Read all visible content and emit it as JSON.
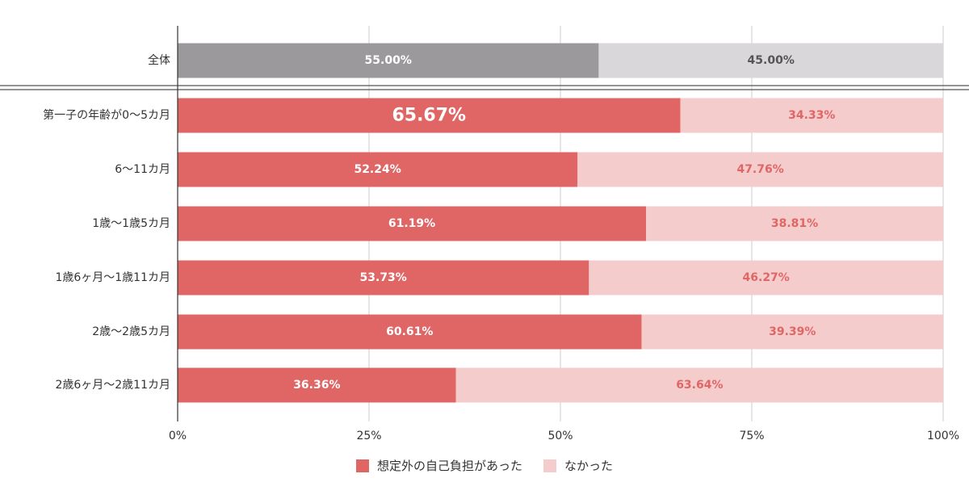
{
  "chart_data": {
    "type": "bar",
    "orientation": "horizontal",
    "stacked": true,
    "categories": [
      "全体",
      "第一子の年齢が0〜5カ月",
      "6〜11カ月",
      "1歳〜1歳5カ月",
      "1歳6ヶ月〜1歳11カ月",
      "2歳〜2歳5カ月",
      "2歳6ヶ月〜2歳11カ月"
    ],
    "series": [
      {
        "name": "想定外の自己負担があった",
        "values": [
          55.0,
          65.67,
          52.24,
          61.19,
          53.73,
          60.61,
          36.36
        ],
        "labels": [
          "55.00%",
          "65.67%",
          "52.24%",
          "61.19%",
          "53.73%",
          "60.61%",
          "36.36%"
        ],
        "color": "#e06666",
        "overall_color": "#9b999b"
      },
      {
        "name": "なかった",
        "values": [
          45.0,
          34.33,
          47.76,
          38.81,
          46.27,
          39.39,
          63.64
        ],
        "labels": [
          "45.00%",
          "34.33%",
          "47.76%",
          "38.81%",
          "46.27%",
          "39.39%",
          "63.64%"
        ],
        "color": "#f4cccc",
        "overall_color": "#d9d7da"
      }
    ],
    "xlim": [
      0,
      100
    ],
    "xticks": [
      "0%",
      "25%",
      "50%",
      "75%",
      "100%"
    ],
    "xtick_values": [
      0,
      25,
      50,
      75,
      100
    ],
    "grid": true,
    "legend_position": "bottom",
    "xlabel": "",
    "ylabel": "",
    "title": ""
  }
}
